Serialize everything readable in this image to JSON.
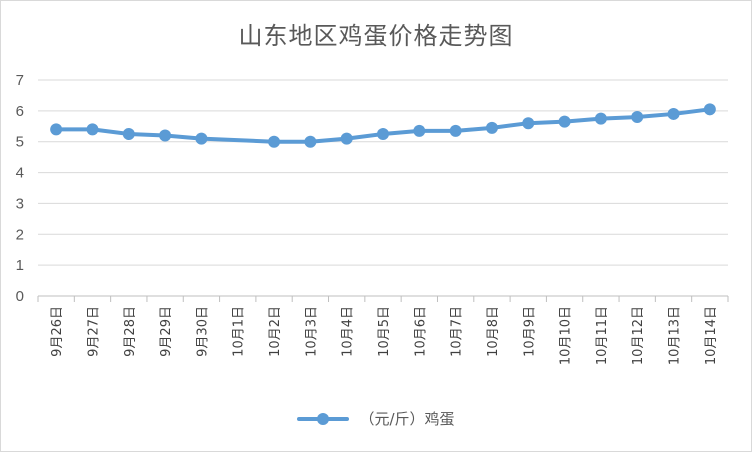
{
  "chart_data": {
    "type": "line",
    "title": "山东地区鸡蛋价格走势图",
    "categories": [
      "9月26日",
      "9月27日",
      "9月28日",
      "9月29日",
      "9月30日",
      "10月1日",
      "10月2日",
      "10月3日",
      "10月4日",
      "10月5日",
      "10月6日",
      "10月7日",
      "10月8日",
      "10月9日",
      "10月10日",
      "10月11日",
      "10月12日",
      "10月13日",
      "10月14日"
    ],
    "series": [
      {
        "name": "（元/斤）鸡蛋",
        "values": [
          5.4,
          5.4,
          5.25,
          5.2,
          5.1,
          null,
          5.0,
          5.0,
          5.1,
          5.25,
          5.35,
          5.35,
          5.45,
          5.6,
          5.65,
          5.75,
          5.8,
          5.9,
          6.05
        ],
        "color": "#5b9bd5"
      }
    ],
    "yticks": [
      "0",
      "1",
      "2",
      "3",
      "4",
      "5",
      "6",
      "7"
    ],
    "ylim": [
      0,
      7
    ],
    "xlabel": "",
    "ylabel": "",
    "grid": true,
    "legend": "bottom-center"
  }
}
